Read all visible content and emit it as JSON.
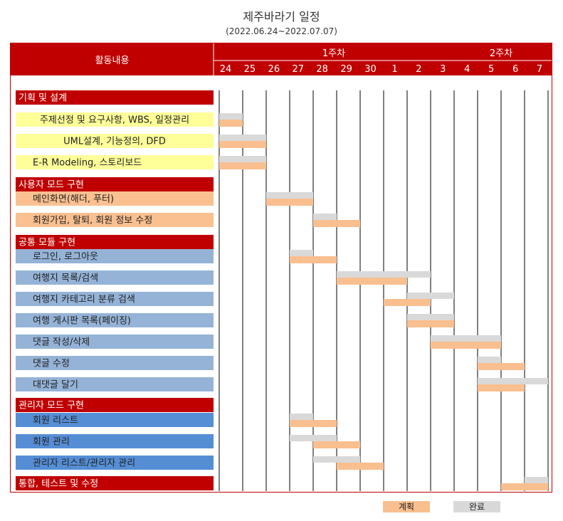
{
  "title": "제주바라기 일정",
  "subtitle": "(2022.06.24~2022.07.07)",
  "chart_data": {
    "type": "gantt",
    "header_label": "활동내용",
    "weeks": [
      {
        "label": "1주차",
        "start": 0,
        "end": 10
      },
      {
        "label": "2주차",
        "start": 10,
        "end": 14
      }
    ],
    "days": [
      "24",
      "25",
      "26",
      "27",
      "28",
      "29",
      "30",
      "1",
      "2",
      "3",
      "4",
      "5",
      "6",
      "7"
    ],
    "legend": {
      "plan": "계획",
      "done": "완료"
    },
    "colors": {
      "header": "#c00000",
      "category": "#c00000",
      "task_yellow": "#ffff99",
      "task_orange": "#fac090",
      "task_blue_light": "#95b3d7",
      "task_blue": "#558ed5",
      "plan_bar": "#f9bf8f",
      "done_bar": "#d9d9d9"
    },
    "rows": [
      {
        "kind": "category",
        "label": "기획 및 설계"
      },
      {
        "kind": "task",
        "label": "주제선정 및 요구사항, WBS, 일정관리",
        "style": "task_yellow",
        "align": "center",
        "done": [
          0,
          0
        ],
        "plan": [
          0,
          0
        ]
      },
      {
        "kind": "task",
        "label": "UML설계, 기능정의, DFD",
        "style": "task_yellow",
        "align": "center",
        "done": [
          0,
          1
        ],
        "plan": [
          0,
          1
        ]
      },
      {
        "kind": "task",
        "label": "E-R Modeling, 스토리보드",
        "style": "task_yellow",
        "align": "left",
        "done": [
          0,
          1
        ],
        "plan": [
          0,
          1
        ]
      },
      {
        "kind": "category",
        "label": "사용자 모드 구현"
      },
      {
        "kind": "task",
        "label": "메인화면(해더, 푸터)",
        "style": "task_orange",
        "align": "left",
        "done": [
          2,
          3
        ],
        "plan": [
          2,
          3
        ]
      },
      {
        "kind": "task",
        "label": "회원가입, 탈퇴, 회원 정보 수정",
        "style": "task_orange",
        "align": "left",
        "done": [
          4,
          4
        ],
        "plan": [
          4,
          5
        ]
      },
      {
        "kind": "category",
        "label": "공통 모듈 구현"
      },
      {
        "kind": "task",
        "label": "로그인, 로그아웃",
        "style": "task_blue_light",
        "align": "left",
        "done": [
          3,
          3
        ],
        "plan": [
          3,
          4
        ]
      },
      {
        "kind": "task",
        "label": "여행지 목록/검색",
        "style": "task_blue_light",
        "align": "left",
        "done": [
          5,
          8
        ],
        "plan": [
          5,
          7
        ]
      },
      {
        "kind": "task",
        "label": "여행지 카테고리 분류 검색",
        "style": "task_blue_light",
        "align": "left",
        "done": [
          8,
          9
        ],
        "plan": [
          7,
          8
        ]
      },
      {
        "kind": "task",
        "label": "여행 게시판 목록(페이징)",
        "style": "task_blue_light",
        "align": "left",
        "done": [
          8,
          9
        ],
        "plan": [
          8,
          9
        ]
      },
      {
        "kind": "task",
        "label": "댓글 작성/삭제",
        "style": "task_blue_light",
        "align": "left",
        "done": [
          9,
          11
        ],
        "plan": [
          9,
          11
        ]
      },
      {
        "kind": "task",
        "label": "댓글 수정",
        "style": "task_blue_light",
        "align": "left",
        "done": [
          11,
          11
        ],
        "plan": [
          11,
          12
        ]
      },
      {
        "kind": "task",
        "label": "대댓글 달기",
        "style": "task_blue_light",
        "align": "left",
        "done": [
          11,
          13
        ],
        "plan": [
          11,
          12
        ]
      },
      {
        "kind": "category",
        "label": "관리자 모드 구현"
      },
      {
        "kind": "task",
        "label": "회원 리스트",
        "style": "task_blue",
        "align": "left",
        "done": [
          3,
          3
        ],
        "plan": [
          3,
          4
        ]
      },
      {
        "kind": "task",
        "label": "회원 관리",
        "style": "task_blue",
        "align": "left",
        "done": [
          3,
          4
        ],
        "plan": [
          4,
          5
        ]
      },
      {
        "kind": "task",
        "label": "관리자 리스트/관리자 관리",
        "style": "task_blue",
        "align": "left",
        "done": [
          4,
          5
        ],
        "plan": [
          5,
          6
        ]
      },
      {
        "kind": "category",
        "label": "통합, 테스트 및 수정",
        "done": [
          13,
          13
        ],
        "plan": [
          12,
          13
        ]
      }
    ]
  }
}
